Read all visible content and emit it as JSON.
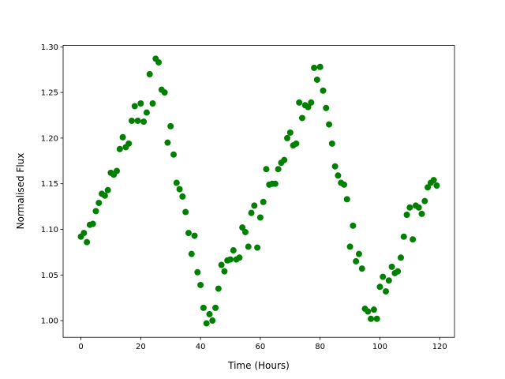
{
  "chart_data": {
    "type": "scatter",
    "x_label": "Time (Hours)",
    "y_label": "Normalised Flux",
    "color": "#008000",
    "xlim": [
      -5.95,
      124.95
    ],
    "ylim": [
      0.9817,
      1.3015
    ],
    "xticks": [
      0,
      20,
      40,
      60,
      80,
      100,
      120
    ],
    "yticks": [
      {
        "value": 1.0,
        "label": "1.00"
      },
      {
        "value": 1.05,
        "label": "1.05"
      },
      {
        "value": 1.1,
        "label": "1.10"
      },
      {
        "value": 1.15,
        "label": "1.15"
      },
      {
        "value": 1.2,
        "label": "1.20"
      },
      {
        "value": 1.25,
        "label": "1.25"
      },
      {
        "value": 1.3,
        "label": "1.30"
      }
    ],
    "grid": false,
    "x": [
      0,
      1,
      2,
      3,
      4,
      5,
      6,
      7,
      8,
      9,
      10,
      11,
      12,
      13,
      14,
      15,
      16,
      17,
      18,
      19,
      20,
      21,
      22,
      23,
      24,
      25,
      26,
      27,
      28,
      29,
      30,
      31,
      32,
      33,
      34,
      35,
      36,
      37,
      38,
      39,
      40,
      41,
      42,
      43,
      44,
      45,
      46,
      47,
      48,
      49,
      50,
      51,
      52,
      53,
      54,
      55,
      56,
      57,
      58,
      59,
      60,
      61,
      62,
      63,
      64,
      65,
      66,
      67,
      68,
      69,
      70,
      71,
      72,
      73,
      74,
      75,
      76,
      77,
      78,
      79,
      80,
      81,
      82,
      83,
      84,
      85,
      86,
      87,
      88,
      89,
      90,
      91,
      92,
      93,
      94,
      95,
      96,
      97,
      98,
      99,
      100,
      101,
      102,
      103,
      104,
      105,
      106,
      107,
      108,
      109,
      110,
      111,
      112,
      113,
      114,
      115,
      116,
      117,
      118,
      119
    ],
    "y": [
      1.092,
      1.096,
      1.086,
      1.105,
      1.106,
      1.12,
      1.129,
      1.139,
      1.137,
      1.143,
      1.162,
      1.16,
      1.164,
      1.188,
      1.201,
      1.19,
      1.194,
      1.219,
      1.235,
      1.219,
      1.238,
      1.218,
      1.228,
      1.27,
      1.238,
      1.287,
      1.283,
      1.253,
      1.25,
      1.195,
      1.213,
      1.182,
      1.151,
      1.144,
      1.136,
      1.119,
      1.096,
      1.073,
      1.093,
      1.053,
      1.039,
      1.014,
      0.997,
      1.007,
      1.0,
      1.014,
      1.035,
      1.061,
      1.054,
      1.066,
      1.067,
      1.077,
      1.067,
      1.069,
      1.102,
      1.097,
      1.081,
      1.118,
      1.126,
      1.08,
      1.113,
      1.13,
      1.166,
      1.149,
      1.15,
      1.15,
      1.166,
      1.173,
      1.176,
      1.2,
      1.206,
      1.192,
      1.194,
      1.239,
      1.222,
      1.236,
      1.234,
      1.239,
      1.277,
      1.264,
      1.278,
      1.252,
      1.233,
      1.215,
      1.194,
      1.169,
      1.159,
      1.151,
      1.149,
      1.133,
      1.081,
      1.104,
      1.065,
      1.073,
      1.057,
      1.013,
      1.01,
      1.002,
      1.012,
      1.002,
      1.037,
      1.048,
      1.032,
      1.044,
      1.059,
      1.052,
      1.054,
      1.069,
      1.092,
      1.116,
      1.124,
      1.089,
      1.126,
      1.124,
      1.117,
      1.131,
      1.146,
      1.151,
      1.154,
      1.148
    ]
  }
}
